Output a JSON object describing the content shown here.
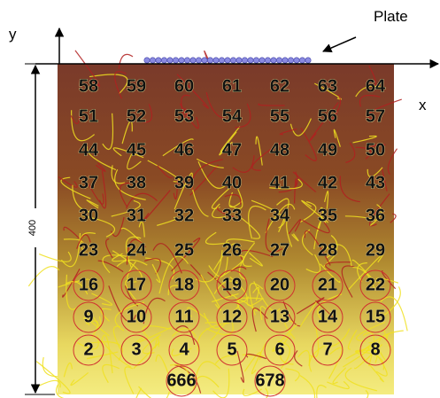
{
  "labels": {
    "y": "y",
    "x": "x",
    "plate": "Plate",
    "height": "400"
  },
  "grid": {
    "rows": [
      [
        58,
        59,
        60,
        61,
        62,
        63,
        64
      ],
      [
        51,
        52,
        53,
        54,
        55,
        56,
        57
      ],
      [
        44,
        45,
        46,
        47,
        48,
        49,
        50
      ],
      [
        37,
        38,
        39,
        40,
        41,
        42,
        43
      ],
      [
        30,
        31,
        32,
        33,
        34,
        35,
        36
      ],
      [
        23,
        24,
        25,
        26,
        27,
        28,
        29
      ],
      [
        16,
        17,
        18,
        19,
        20,
        21,
        22
      ],
      [
        9,
        10,
        11,
        12,
        13,
        14,
        15
      ],
      [
        2,
        3,
        4,
        5,
        6,
        7,
        8
      ],
      [
        666,
        678
      ]
    ]
  }
}
